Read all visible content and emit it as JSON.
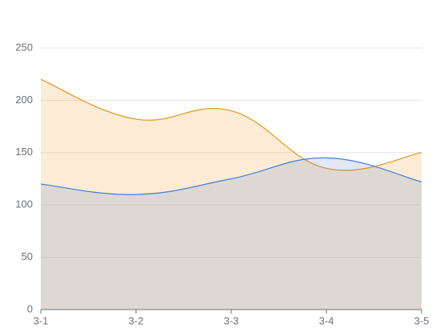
{
  "chart_data": {
    "type": "area",
    "categories": [
      "3-1",
      "3-2",
      "3-3",
      "3-4",
      "3-5"
    ],
    "series": [
      {
        "color": "#e6951c",
        "fill": "rgba(243,170,70,0.22)",
        "values": [
          220,
          182,
          190,
          135,
          150
        ]
      },
      {
        "color": "#3f7fdc",
        "fill": "rgba(70,110,200,0.16)",
        "values": [
          120,
          110,
          125,
          145,
          122
        ]
      }
    ],
    "ylim": [
      0,
      250
    ],
    "yticks": [
      0,
      50,
      100,
      150,
      200,
      250
    ],
    "grid": true,
    "smooth": true
  }
}
